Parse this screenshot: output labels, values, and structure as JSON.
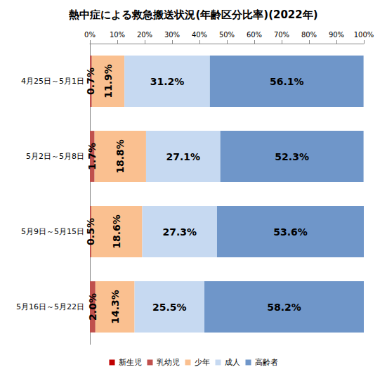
{
  "chart_data": {
    "type": "bar",
    "title": "熱中症による救急搬送状況(年齢区分比率)(2022年)",
    "orientation": "horizontal",
    "stacked": true,
    "data_labels": true,
    "grid": false,
    "legend": "bottom",
    "categories": [
      "4月25日～5月1日",
      "5月2日～5月8日",
      "5月9日～5月15日",
      "5月16日～5月22日"
    ],
    "xlim": [
      0,
      100
    ],
    "xticks": [
      {
        "value": 0,
        "label": "0%"
      },
      {
        "value": 10,
        "label": "10%"
      },
      {
        "value": 20,
        "label": "20%"
      },
      {
        "value": 30,
        "label": "30%"
      },
      {
        "value": 40,
        "label": "40%"
      },
      {
        "value": 50,
        "label": "50%"
      },
      {
        "value": 60,
        "label": "60%"
      },
      {
        "value": 70,
        "label": "70%"
      },
      {
        "value": 80,
        "label": "80%"
      },
      {
        "value": 90,
        "label": "90%"
      },
      {
        "value": 100,
        "label": "100%"
      }
    ],
    "series": [
      {
        "name": "新生児",
        "color": "#c00000",
        "values": [
          0,
          0,
          0,
          0
        ],
        "value_labels": [
          null,
          null,
          null,
          null
        ]
      },
      {
        "name": "乳幼児",
        "color": "#c0504d",
        "values": [
          0.7,
          1.7,
          0.5,
          2.0
        ],
        "value_labels": [
          "0.7%",
          "1.7%",
          "0.5%",
          "2.0%"
        ]
      },
      {
        "name": "少年",
        "color": "#fac090",
        "values": [
          11.9,
          18.8,
          18.6,
          14.3
        ],
        "value_labels": [
          "11.9%",
          "18.8%",
          "18.6%",
          "14.3%"
        ]
      },
      {
        "name": "成人",
        "color": "#c6d9f1",
        "values": [
          31.2,
          27.1,
          27.3,
          25.5
        ],
        "value_labels": [
          "31.2%",
          "27.1%",
          "27.3%",
          "25.5%"
        ]
      },
      {
        "name": "高齢者",
        "color": "#6f96c9",
        "values": [
          56.1,
          52.3,
          53.6,
          58.2
        ],
        "value_labels": [
          "56.1%",
          "52.3%",
          "53.6%",
          "58.2%"
        ]
      }
    ]
  }
}
